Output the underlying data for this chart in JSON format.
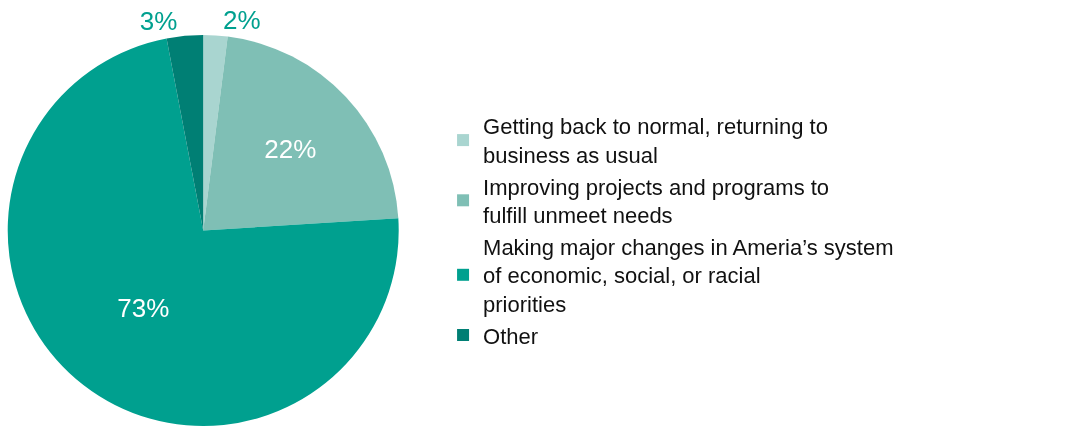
{
  "chart_data": {
    "type": "pie",
    "categories": [
      "Getting back to normal, returning to business as usual",
      "Improving projects and programs to fulfill unmeet needs",
      "Making major changes in Ameria’s system of economic, social, or racial priorities",
      "Other"
    ],
    "values": [
      2,
      22,
      73,
      3
    ],
    "value_labels": [
      "2%",
      "22%",
      "73%",
      "3%"
    ],
    "colors": [
      "#a9d5d0",
      "#7fbfb5",
      "#00a08f",
      "#007f74"
    ],
    "legend": "right"
  }
}
